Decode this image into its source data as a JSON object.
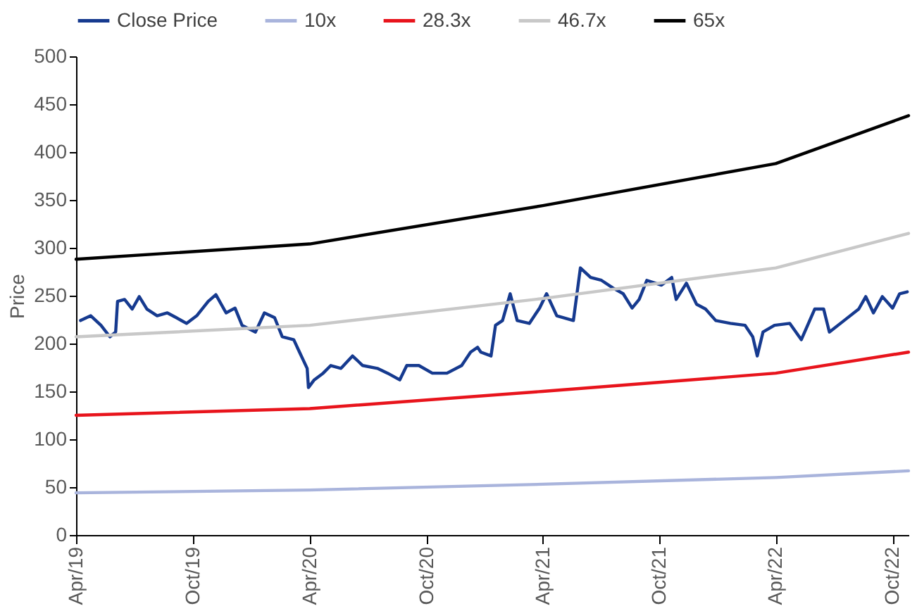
{
  "chart_data": {
    "type": "line",
    "ylabel": "Price",
    "xlim": [
      "2019-04-01",
      "2022-10-26"
    ],
    "ylim": [
      0,
      500
    ],
    "yticks": [
      0,
      50,
      100,
      150,
      200,
      250,
      300,
      350,
      400,
      450,
      500
    ],
    "xticks": [
      {
        "value": "2019-04-01",
        "label": "Apr/19"
      },
      {
        "value": "2019-10-01",
        "label": "Oct/19"
      },
      {
        "value": "2020-04-01",
        "label": "Apr/20"
      },
      {
        "value": "2020-10-01",
        "label": "Oct/20"
      },
      {
        "value": "2021-04-01",
        "label": "Apr/21"
      },
      {
        "value": "2021-10-01",
        "label": "Oct/21"
      },
      {
        "value": "2022-04-01",
        "label": "Apr/22"
      },
      {
        "value": "2022-10-01",
        "label": "Oct/22"
      }
    ],
    "grid": false,
    "legend": "top",
    "marker": "none",
    "line_style": "solid",
    "series": [
      {
        "name": "Close Price",
        "color": "#163a8f",
        "x": [
          "2019-04-08",
          "2019-04-24",
          "2019-05-10",
          "2019-05-24",
          "2019-06-02",
          "2019-06-05",
          "2019-06-16",
          "2019-06-28",
          "2019-07-09",
          "2019-07-21",
          "2019-08-06",
          "2019-08-22",
          "2019-09-05",
          "2019-09-21",
          "2019-10-07",
          "2019-10-25",
          "2019-11-06",
          "2019-11-22",
          "2019-12-06",
          "2019-12-17",
          "2020-01-07",
          "2020-01-21",
          "2020-02-06",
          "2020-02-18",
          "2020-03-07",
          "2020-03-16",
          "2020-03-28",
          "2020-03-30",
          "2020-04-08",
          "2020-04-22",
          "2020-05-04",
          "2020-05-20",
          "2020-06-07",
          "2020-06-23",
          "2020-07-16",
          "2020-08-01",
          "2020-08-20",
          "2020-08-31",
          "2020-09-19",
          "2020-10-10",
          "2020-11-02",
          "2020-11-25",
          "2020-12-09",
          "2020-12-20",
          "2020-12-25",
          "2021-01-10",
          "2021-01-17",
          "2021-01-28",
          "2021-02-09",
          "2021-02-20",
          "2021-03-11",
          "2021-03-27",
          "2021-04-07",
          "2021-04-23",
          "2021-05-19",
          "2021-05-30",
          "2021-06-15",
          "2021-07-02",
          "2021-07-20",
          "2021-08-05",
          "2021-08-19",
          "2021-08-30",
          "2021-09-11",
          "2021-10-04",
          "2021-10-20",
          "2021-10-27",
          "2021-11-12",
          "2021-11-28",
          "2021-12-12",
          "2021-12-28",
          "2022-01-20",
          "2022-02-12",
          "2022-02-24",
          "2022-03-03",
          "2022-03-12",
          "2022-03-30",
          "2022-04-23",
          "2022-05-11",
          "2022-06-01",
          "2022-06-15",
          "2022-06-24",
          "2022-07-17",
          "2022-08-09",
          "2022-08-20",
          "2022-09-01",
          "2022-09-15",
          "2022-10-01",
          "2022-10-12",
          "2022-10-24"
        ],
        "values": [
          224,
          229,
          219,
          207,
          212,
          244,
          246,
          236,
          249,
          236,
          229,
          232,
          227,
          221,
          229,
          244,
          251,
          232,
          237,
          219,
          212,
          232,
          227,
          207,
          204,
          191,
          174,
          154,
          162,
          169,
          177,
          174,
          187,
          177,
          174,
          169,
          162,
          177,
          177,
          169,
          169,
          177,
          191,
          196,
          191,
          187,
          219,
          224,
          252,
          224,
          221,
          237,
          252,
          229,
          224,
          279,
          269,
          266,
          258,
          252,
          237,
          246,
          266,
          261,
          269,
          246,
          263,
          241,
          236,
          224,
          221,
          219,
          207,
          187,
          212,
          219,
          221,
          204,
          236,
          236,
          212,
          224,
          236,
          249,
          232,
          249,
          237,
          252,
          254
        ]
      },
      {
        "name": "10x",
        "color": "#a9b4dc",
        "x": [
          "2019-04-01",
          "2020-04-01",
          "2021-04-01",
          "2022-04-01",
          "2022-10-26"
        ],
        "values": [
          44,
          47,
          53,
          60,
          67
        ]
      },
      {
        "name": "28.3x",
        "color": "#e8141c",
        "x": [
          "2019-04-01",
          "2020-04-01",
          "2021-04-01",
          "2022-04-01",
          "2022-10-26"
        ],
        "values": [
          125,
          132,
          150,
          169,
          191
        ]
      },
      {
        "name": "46.7x",
        "color": "#c8c8c8",
        "x": [
          "2019-04-01",
          "2020-04-01",
          "2021-04-01",
          "2022-04-01",
          "2022-10-26"
        ],
        "values": [
          207,
          219,
          247,
          279,
          315
        ]
      },
      {
        "name": "65x",
        "color": "#000000",
        "x": [
          "2019-04-01",
          "2020-04-01",
          "2021-04-01",
          "2022-04-01",
          "2022-10-26"
        ],
        "values": [
          288,
          304,
          344,
          388,
          438
        ]
      }
    ]
  }
}
